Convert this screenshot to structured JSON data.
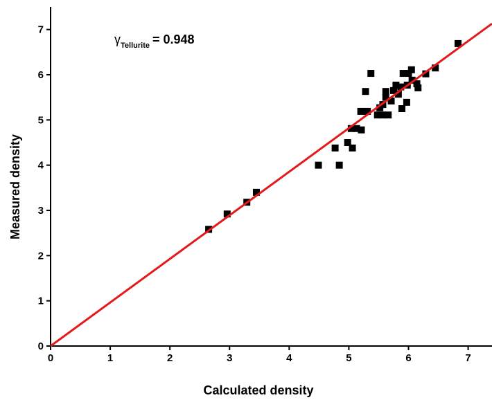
{
  "chart_data": {
    "type": "scatter",
    "xlabel": "Calculated density",
    "ylabel": "Measured density",
    "annotation": {
      "symbol": "γ",
      "subscript": "Tellurite",
      "text": "= 0.948"
    },
    "xlim": [
      0,
      7.4
    ],
    "ylim": [
      0,
      7.5
    ],
    "xticks": [
      0,
      1,
      2,
      3,
      4,
      5,
      6,
      7
    ],
    "yticks": [
      0,
      1,
      2,
      3,
      4,
      5,
      6,
      7
    ],
    "series": [
      {
        "color": "#000000",
        "x": [
          2.65,
          2.96,
          3.29,
          3.45,
          4.49,
          4.77,
          4.84,
          4.98,
          5.06,
          5.04,
          5.13,
          5.21,
          5.2,
          5.28,
          5.31,
          5.37,
          5.48,
          5.52,
          5.57,
          5.62,
          5.62,
          5.57,
          5.66,
          5.71,
          5.75,
          5.79,
          5.83,
          5.87,
          5.89,
          5.91,
          5.98,
          6.0,
          5.97,
          6.06,
          6.05,
          6.14,
          6.16,
          6.29,
          6.45,
          6.83
        ],
        "values": [
          2.58,
          2.92,
          3.18,
          3.4,
          4.0,
          4.38,
          4.0,
          4.5,
          4.38,
          4.81,
          4.81,
          4.78,
          5.19,
          5.63,
          5.19,
          6.03,
          5.11,
          5.27,
          5.34,
          5.5,
          5.63,
          5.11,
          5.11,
          5.42,
          5.65,
          5.77,
          5.57,
          5.73,
          5.25,
          6.03,
          5.77,
          6.03,
          5.39,
          5.88,
          6.11,
          5.8,
          5.71,
          6.02,
          6.15,
          6.69
        ]
      },
      {
        "type": "line",
        "color": "#e31a1c",
        "x": [
          0,
          7.4
        ],
        "values": [
          0,
          7.13
        ]
      }
    ]
  }
}
